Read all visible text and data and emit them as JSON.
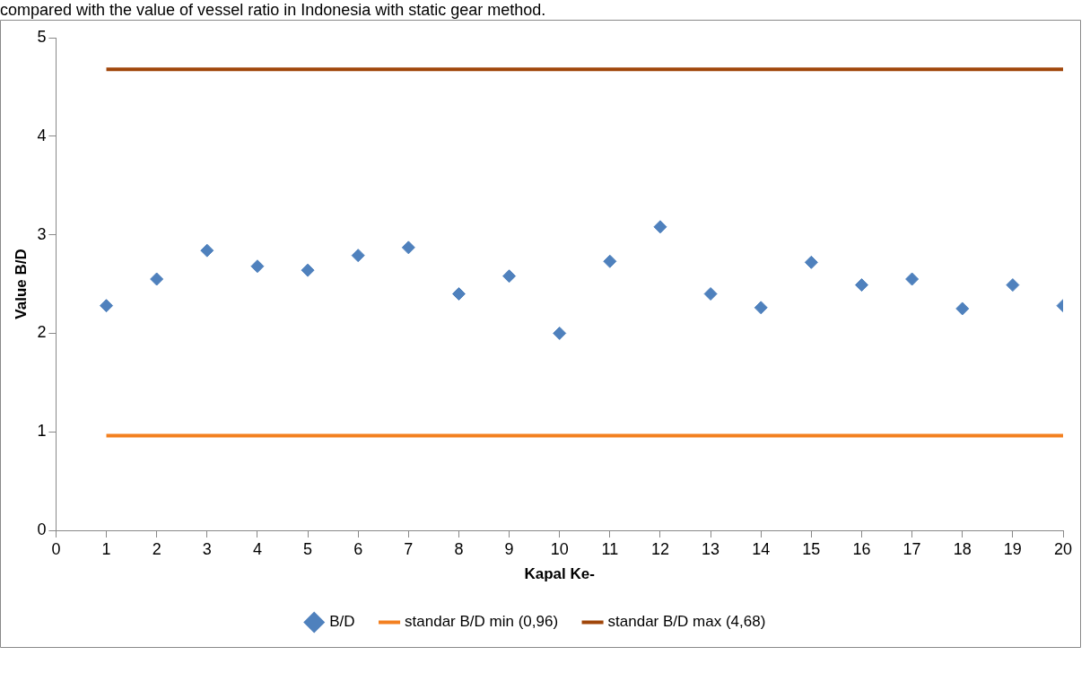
{
  "chart_data": {
    "type": "scatter",
    "xlabel": "Kapal Ke-",
    "ylabel": "Value B/D",
    "annotations": [
      "compared with the value of vessel ratio in Indonesia with static gear method."
    ],
    "xlim": [
      0,
      20
    ],
    "xticks": [
      0,
      1,
      2,
      3,
      4,
      5,
      6,
      7,
      8,
      9,
      10,
      11,
      12,
      13,
      14,
      15,
      16,
      17,
      18,
      19,
      20
    ],
    "ylim": [
      0,
      5
    ],
    "yticks": [
      0,
      1,
      2,
      3,
      4,
      5
    ],
    "grid": false,
    "legend": "bottom",
    "series": [
      {
        "name": "B/D",
        "type": "scatter",
        "marker": "diamond",
        "color": "#4f81bd",
        "x": [
          1,
          2,
          3,
          4,
          5,
          6,
          7,
          8,
          9,
          10,
          11,
          12,
          13,
          14,
          15,
          16,
          17,
          18,
          19,
          20
        ],
        "values": [
          2.28,
          2.55,
          2.84,
          2.68,
          2.64,
          2.79,
          2.87,
          2.4,
          2.58,
          2.0,
          2.73,
          3.08,
          2.4,
          2.26,
          2.72,
          2.49,
          2.55,
          2.25,
          2.49,
          2.28
        ]
      },
      {
        "name": "standar B/D min (0,96)",
        "type": "line",
        "marker": "none",
        "color": "#f38020",
        "x": [
          1,
          20
        ],
        "values": [
          0.96,
          0.96
        ]
      },
      {
        "name": "standar B/D max (4,68)",
        "type": "line",
        "marker": "none",
        "color": "#a0460a",
        "x": [
          1,
          20
        ],
        "values": [
          4.68,
          4.68
        ]
      }
    ]
  }
}
